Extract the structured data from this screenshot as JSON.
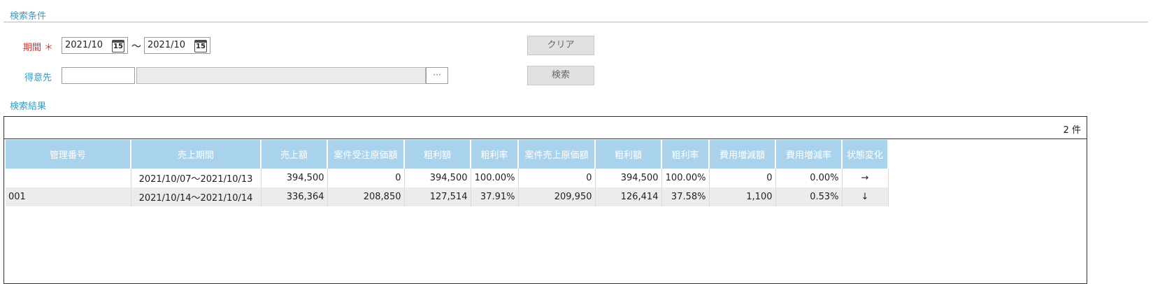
{
  "search_section": {
    "title": "検索条件",
    "period": {
      "label": "期間",
      "required_mark": "＊",
      "from_value": "2021/10",
      "to_value": "2021/10",
      "separator": "〜",
      "calendar_day": "15"
    },
    "customer": {
      "label": "得意先",
      "code_value": "",
      "name_value": "",
      "lookup_label": "···"
    },
    "clear_button": "クリア",
    "search_button": "検索"
  },
  "results_section": {
    "title": "検索結果",
    "count_text": "2 件",
    "columns": [
      "管理番号",
      "売上期間",
      "売上額",
      "案件受注原価額",
      "粗利額",
      "粗利率",
      "案件売上原価額",
      "粗利額",
      "粗利率",
      "費用増減額",
      "費用増減率",
      "状態変化"
    ],
    "rows": [
      [
        "",
        "2021/10/07〜2021/10/13",
        "394,500",
        "0",
        "394,500",
        "100.00%",
        "0",
        "394,500",
        "100.00%",
        "0",
        "0.00%",
        "→"
      ],
      [
        "001",
        "2021/10/14〜2021/10/14",
        "336,364",
        "208,850",
        "127,514",
        "37.91%",
        "209,950",
        "126,414",
        "37.58%",
        "1,100",
        "0.53%",
        "↓"
      ]
    ]
  },
  "colors": {
    "accent": "#3a9cc4",
    "required": "#e0302b",
    "header_bg": "#a9d3ec",
    "alt_row_bg": "#ececec"
  }
}
